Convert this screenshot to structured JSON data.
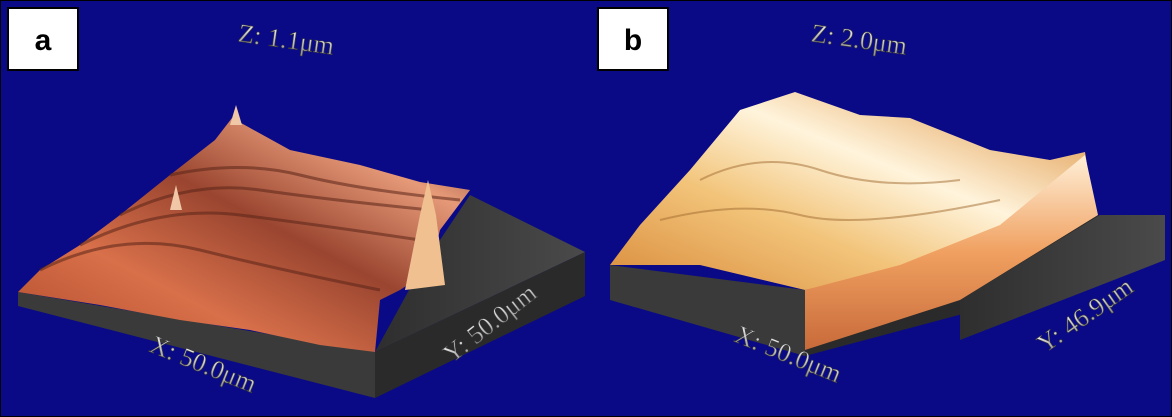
{
  "panels": [
    {
      "label": "a",
      "z_label": "Z: 1.1μm",
      "x_label": "X: 50.0μm",
      "y_label": "Y: 50.0μm"
    },
    {
      "label": "b",
      "z_label": "Z: 2.0μm",
      "x_label": "X: 50.0μm",
      "y_label": "Y: 46.9μm"
    }
  ]
}
